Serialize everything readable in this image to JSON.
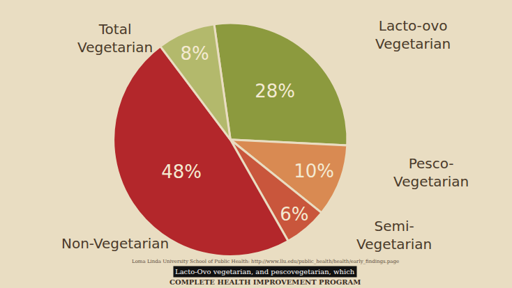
{
  "chart_data": {
    "type": "pie",
    "categories": [
      "Lacto-ovo Vegetarian",
      "Pesco-Vegetarian",
      "Semi-Vegetarian",
      "Non-Vegetarian",
      "Total Vegetarian"
    ],
    "values": [
      28,
      10,
      6,
      48,
      8
    ],
    "value_labels": [
      "28%",
      "10%",
      "6%",
      "48%",
      "8%"
    ],
    "colors": [
      "#8c9a3e",
      "#d98a52",
      "#c9563c",
      "#b3272b",
      "#b3b96c"
    ],
    "data_labels": true,
    "annotations": [
      "Loma Linda University School of Public Health: http://www.llu.edu/public_health/health/early_findings.page",
      "Lacto-Ovo vegetarian, and pescovegetarian, which",
      "COMPLETE HEALTH IMPROVEMENT PROGRAM"
    ]
  }
}
